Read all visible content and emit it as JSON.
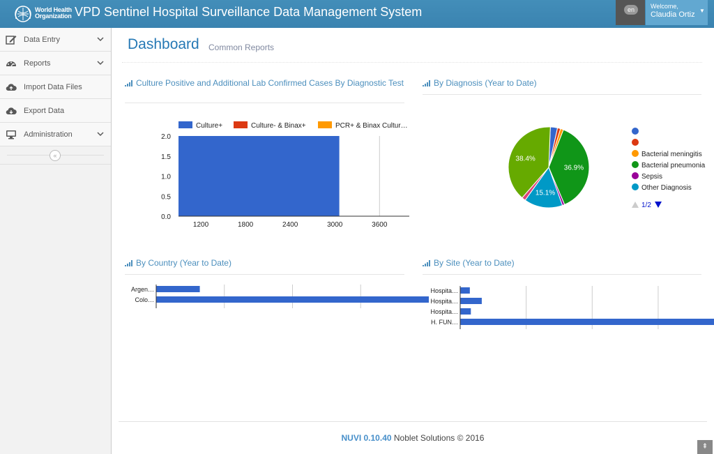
{
  "header": {
    "logo_text_line1": "World Health",
    "logo_text_line2": "Organization",
    "title": "VPD Sentinel Hospital Surveillance Data Management System",
    "language": "en",
    "welcome": "Welcome,",
    "user_name": "Claudia Ortiz"
  },
  "sidebar": {
    "items": [
      {
        "label": "Data Entry",
        "icon": "edit-icon"
      },
      {
        "label": "Reports",
        "icon": "dashboard-icon"
      },
      {
        "label": "Import Data Files",
        "icon": "cloud-upload-icon"
      },
      {
        "label": "Export Data",
        "icon": "cloud-download-icon"
      },
      {
        "label": "Administration",
        "icon": "desktop-icon"
      }
    ],
    "collapse_glyph": "«"
  },
  "page": {
    "title": "Dashboard",
    "subtitle": "Common Reports"
  },
  "widgets": {
    "culture": {
      "title": "Culture Positive and Additional Lab Confirmed Cases By Diagnostic Test"
    },
    "diagnosis": {
      "title": "By Diagnosis (Year to Date)"
    },
    "country": {
      "title": "By Country (Year to Date)"
    },
    "site": {
      "title": "By Site (Year to Date)"
    }
  },
  "chart_data": [
    {
      "type": "bar",
      "orientation": "horizontal",
      "legend": [
        "Culture+",
        "Culture- & Binax+",
        "PCR+ & Binax Cultur…"
      ],
      "legend_colors": [
        "#3366cc",
        "#dc3912",
        "#ff9900"
      ],
      "categories": [
        "2.0",
        "1.5",
        "1.0",
        "0.5",
        "0.0"
      ],
      "x_ticks": [
        "1200",
        "1800",
        "2400",
        "3000",
        "3600"
      ],
      "xlim": [
        900,
        4000
      ],
      "series": [
        {
          "name": "Culture+",
          "bar": {
            "from": 900,
            "to": 3060
          }
        }
      ]
    },
    {
      "type": "pie",
      "slices": [
        {
          "label": "",
          "value": 2.8,
          "color": "#3366cc"
        },
        {
          "label": "",
          "value": 1.2,
          "color": "#dc3912"
        },
        {
          "label": "Bacterial meningitis",
          "value": 1.2,
          "color": "#ff9900"
        },
        {
          "label": "Bacterial pneumonia",
          "value": 36.9,
          "color": "#109618",
          "display": "36.9%"
        },
        {
          "label": "Sepsis",
          "value": 0.9,
          "color": "#990099"
        },
        {
          "label": "Other Diagnosis",
          "value": 15.1,
          "color": "#0099c6",
          "display": "15.1%"
        },
        {
          "label": "",
          "value": 1.5,
          "color": "#dd4477"
        },
        {
          "label": "",
          "value": 38.4,
          "color": "#66aa00",
          "display": "38.4%"
        }
      ],
      "legend": [
        "",
        "",
        "Bacterial meningitis",
        "Bacterial pneumonia",
        "Sepsis",
        "Other Diagnosis"
      ],
      "legend_colors": [
        "#3366cc",
        "#dc3912",
        "#ff9900",
        "#109618",
        "#990099",
        "#0099c6"
      ],
      "pager": "1/2"
    },
    {
      "type": "bar",
      "orientation": "horizontal",
      "categories": [
        "Argen…",
        "Colo…"
      ],
      "values": [
        16,
        100
      ],
      "color": "#3366cc"
    },
    {
      "type": "bar",
      "orientation": "horizontal",
      "categories": [
        "Hospita…",
        "Hospita…",
        "Hospita…",
        "H. FUN…"
      ],
      "values": [
        3.8,
        8.5,
        4.2,
        100
      ],
      "color": "#3366cc"
    }
  ],
  "footer": {
    "brand": "NUVI 0.10.40",
    "company": "Noblet Solutions © 2016",
    "scroll_top_glyph": "⇞"
  },
  "colors": {
    "topbar": "#438eb9",
    "accent": "#2679b5",
    "bar": "#3366cc"
  }
}
